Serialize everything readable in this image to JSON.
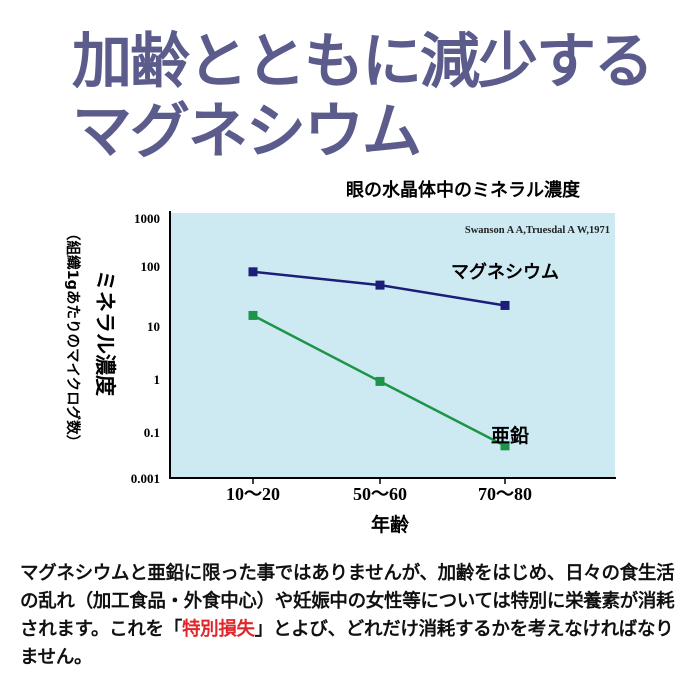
{
  "headline": {
    "line1": "加齢とともに減少する",
    "line2": "マグネシウム"
  },
  "chart_data": {
    "type": "line",
    "title": "眼の水晶体中のミネラル濃度",
    "source": "Swanson A A,Truesdal A W,1971",
    "xlabel": "年齢",
    "ylabel": "ミネラル濃度",
    "ylabel_sub": "（組織1gあたりのマイクログ数）",
    "categories": [
      "10〜20",
      "50〜60",
      "70〜80"
    ],
    "yticks": [
      "1000",
      "100",
      "10",
      "1",
      "0.1",
      "0.001"
    ],
    "yscale": "log",
    "series": [
      {
        "name": "マグネシウム",
        "values": [
          80,
          48,
          22
        ],
        "color": "#1d1d7a"
      },
      {
        "name": "亜鉛",
        "values": [
          15,
          0.9,
          0.025
        ],
        "color": "#1e9448"
      }
    ],
    "background": "#cdeaf3"
  },
  "body": {
    "text_before": "マグネシウムと亜鉛に限った事ではありませんが、加齢をはじめ、日々の食生活の乱れ（加工食品・外食中心）や妊娠中の女性等については特別に栄養素が消耗されます。これを「",
    "highlight": "特別損失",
    "text_after": "」とよび、どれだけ消耗するかを考えなければなりません。"
  }
}
